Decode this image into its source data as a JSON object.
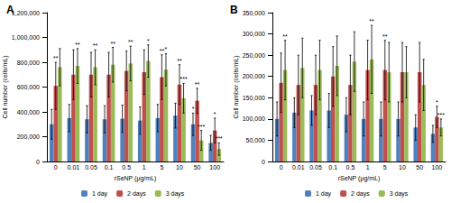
{
  "chart_data": [
    {
      "type": "bar",
      "title": "A",
      "xlabel": "rSeNP (μg/mL)",
      "ylabel": "Cell number (cells/mL)",
      "categories": [
        "0",
        "0.01",
        "0.05",
        "0.1",
        "0.5",
        "1",
        "5",
        "10",
        "50",
        "100"
      ],
      "ylim": [
        0,
        1200000
      ],
      "yticks": [
        0,
        {
          "value": 200000,
          "label": "200,000"
        },
        {
          "value": 400000,
          "label": "400,000"
        },
        {
          "value": 600000,
          "label": "600,000"
        },
        {
          "value": 800000,
          "label": "800,000"
        },
        {
          "value": 1000000,
          "label": "1,000,000"
        },
        {
          "value": 1200000,
          "label": "1,200,000"
        }
      ],
      "grid": false,
      "legend": "bottom",
      "series": [
        {
          "name": "1 day",
          "color": "#4f81bd",
          "values": [
            300000,
            350000,
            340000,
            340000,
            345000,
            330000,
            350000,
            370000,
            300000,
            150000
          ],
          "errors": [
            120000,
            110000,
            110000,
            110000,
            110000,
            110000,
            110000,
            100000,
            90000,
            60000
          ],
          "annotations": [
            null,
            null,
            null,
            null,
            null,
            null,
            null,
            null,
            "*",
            null
          ]
        },
        {
          "name": "2 days",
          "color": "#c0504d",
          "values": [
            610000,
            700000,
            700000,
            700000,
            730000,
            720000,
            680000,
            620000,
            490000,
            250000
          ],
          "errors": [
            190000,
            200000,
            180000,
            180000,
            160000,
            180000,
            180000,
            160000,
            100000,
            100000
          ],
          "annotations": [
            "**",
            null,
            null,
            null,
            null,
            null,
            "**",
            "**",
            "**",
            "*"
          ]
        },
        {
          "name": "3 days",
          "color": "#9bbb59",
          "values": [
            760000,
            770000,
            760000,
            780000,
            790000,
            810000,
            740000,
            510000,
            170000,
            100000
          ],
          "errors": [
            150000,
            140000,
            140000,
            140000,
            140000,
            130000,
            130000,
            120000,
            80000,
            50000
          ],
          "annotations": [
            null,
            "**",
            "**",
            "**",
            "**",
            "*",
            "*",
            "***",
            "***",
            "***"
          ]
        }
      ]
    },
    {
      "type": "bar",
      "title": "B",
      "xlabel": "rSeNP (μg/mL)",
      "ylabel": "Cell number (cells/mL)",
      "categories": [
        "0",
        "0.01",
        "0.05",
        "0.1",
        "0.5",
        "1",
        "5",
        "10",
        "50",
        "100"
      ],
      "ylim": [
        0,
        350000
      ],
      "yticks": [
        0,
        {
          "value": 50000,
          "label": "50,000"
        },
        {
          "value": 100000,
          "label": "100,000"
        },
        {
          "value": 150000,
          "label": "150,000"
        },
        {
          "value": 200000,
          "label": "200,000"
        },
        {
          "value": 250000,
          "label": "250,000"
        },
        {
          "value": 300000,
          "label": "300,000"
        },
        {
          "value": 350000,
          "label": "350,000"
        }
      ],
      "grid": false,
      "legend": "bottom",
      "series": [
        {
          "name": "1 day",
          "color": "#4f81bd",
          "values": [
            100000,
            115000,
            120000,
            120000,
            110000,
            100000,
            100000,
            100000,
            80000,
            65000
          ],
          "errors": [
            40000,
            35000,
            35000,
            40000,
            40000,
            40000,
            40000,
            40000,
            30000,
            20000
          ],
          "annotations": [
            null,
            null,
            null,
            null,
            null,
            null,
            null,
            null,
            null,
            null
          ]
        },
        {
          "name": "2 days",
          "color": "#c0504d",
          "values": [
            185000,
            180000,
            180000,
            200000,
            180000,
            215000,
            215000,
            210000,
            210000,
            105000
          ],
          "errors": [
            70000,
            70000,
            70000,
            70000,
            70000,
            70000,
            70000,
            70000,
            70000,
            25000
          ],
          "annotations": [
            null,
            null,
            null,
            null,
            null,
            null,
            "**",
            null,
            null,
            "*"
          ]
        },
        {
          "name": "3 days",
          "color": "#9bbb59",
          "values": [
            215000,
            220000,
            215000,
            225000,
            235000,
            240000,
            210000,
            210000,
            180000,
            80000
          ],
          "errors": [
            70000,
            70000,
            70000,
            70000,
            70000,
            80000,
            70000,
            60000,
            60000,
            20000
          ],
          "annotations": [
            "**",
            null,
            null,
            null,
            null,
            "**",
            null,
            null,
            null,
            "***"
          ]
        }
      ]
    }
  ]
}
